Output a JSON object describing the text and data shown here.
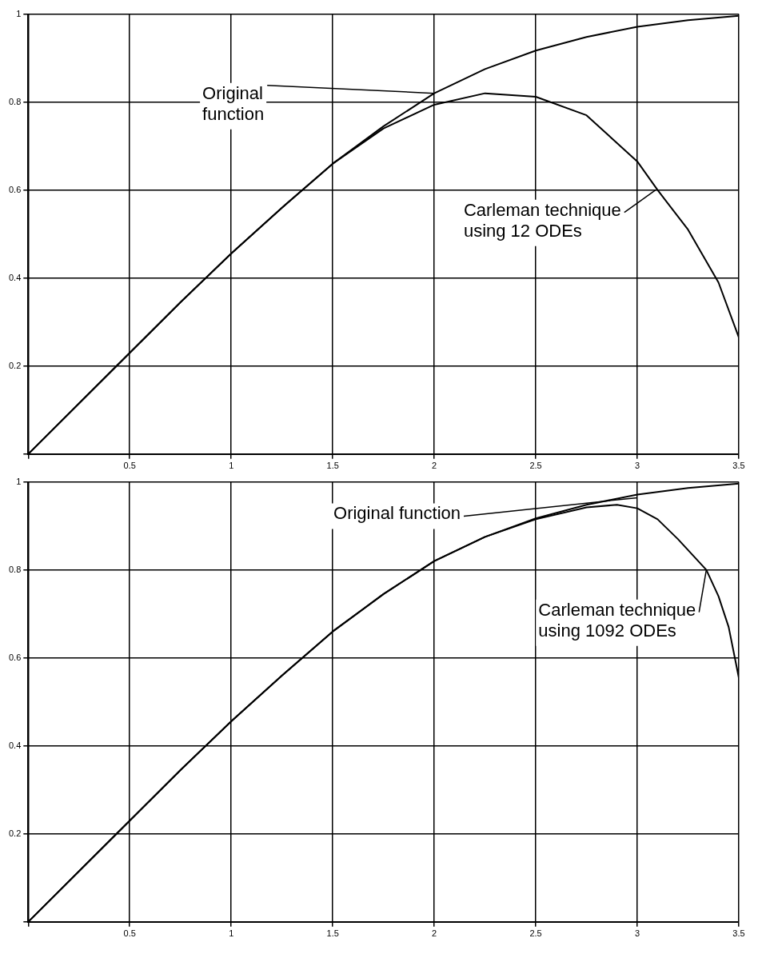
{
  "chart_data": [
    {
      "type": "line",
      "x": [
        0,
        0.25,
        0.5,
        0.75,
        1,
        1.25,
        1.5,
        1.75,
        2,
        2.25,
        2.5,
        2.75,
        3,
        3.25,
        3.5
      ],
      "series": [
        {
          "color": "#000000",
          "values": [
            0,
            0.115,
            0.23,
            0.345,
            0.456,
            0.56,
            0.66,
            0.745,
            0.82,
            0.875,
            0.917,
            0.948,
            0.971,
            0.986,
            0.996
          ]
        },
        {
          "color": "#000000",
          "x": [
            0,
            0.25,
            0.5,
            0.75,
            1,
            1.25,
            1.5,
            1.75,
            2,
            2.25,
            2.5,
            2.75,
            3,
            3.1,
            3.25,
            3.4,
            3.5
          ],
          "values": [
            0,
            0.115,
            0.23,
            0.345,
            0.456,
            0.56,
            0.66,
            0.74,
            0.794,
            0.82,
            0.812,
            0.77,
            0.665,
            0.6,
            0.51,
            0.39,
            0.265
          ]
        }
      ],
      "annotations": [
        {
          "text": "Original\nfunction",
          "x": 2,
          "y": 0.82
        },
        {
          "text": "Carleman technique\nusing 12 ODEs",
          "x": 3.09,
          "y": 0.6
        }
      ],
      "xlim": [
        0,
        3.5
      ],
      "xticks": [
        {
          "value": 0,
          "label": null
        },
        0.5,
        1,
        1.5,
        2,
        2.5,
        3,
        3.5
      ],
      "ylim": [
        0,
        1
      ],
      "yticks": [
        {
          "value": 0,
          "label": null
        },
        0.2,
        0.4,
        0.6,
        0.8,
        1
      ],
      "grid": true,
      "legend": false,
      "marker": "none",
      "line_style": "solid"
    },
    {
      "type": "line",
      "x": [
        0,
        0.25,
        0.5,
        0.75,
        1,
        1.25,
        1.5,
        1.75,
        2,
        2.25,
        2.5,
        2.75,
        3,
        3.25,
        3.5
      ],
      "series": [
        {
          "color": "#000000",
          "values": [
            0,
            0.115,
            0.23,
            0.345,
            0.456,
            0.56,
            0.66,
            0.745,
            0.82,
            0.875,
            0.917,
            0.948,
            0.971,
            0.986,
            0.996
          ]
        },
        {
          "color": "#000000",
          "x": [
            0,
            0.25,
            0.5,
            0.75,
            1,
            1.25,
            1.5,
            1.75,
            2,
            2.25,
            2.5,
            2.75,
            2.9,
            3,
            3.1,
            3.2,
            3.34,
            3.4,
            3.45,
            3.5
          ],
          "values": [
            0,
            0.115,
            0.23,
            0.345,
            0.456,
            0.56,
            0.66,
            0.745,
            0.82,
            0.875,
            0.915,
            0.942,
            0.948,
            0.94,
            0.915,
            0.87,
            0.8,
            0.74,
            0.67,
            0.555
          ]
        }
      ],
      "annotations": [
        {
          "text": "Original function",
          "x": 3.0,
          "y": 0.964
        },
        {
          "text": "Carleman technique\nusing 1092 ODEs",
          "x": 3.34,
          "y": 0.8
        }
      ],
      "xlim": [
        0,
        3.5
      ],
      "xticks": [
        {
          "value": 0,
          "label": null
        },
        0.5,
        1,
        1.5,
        2,
        2.5,
        3,
        3.5
      ],
      "ylim": [
        0,
        1
      ],
      "yticks": [
        {
          "value": 0,
          "label": null
        },
        0.2,
        0.4,
        0.6,
        0.8,
        1
      ],
      "grid": true,
      "legend": false,
      "marker": "none",
      "line_style": "solid"
    }
  ]
}
